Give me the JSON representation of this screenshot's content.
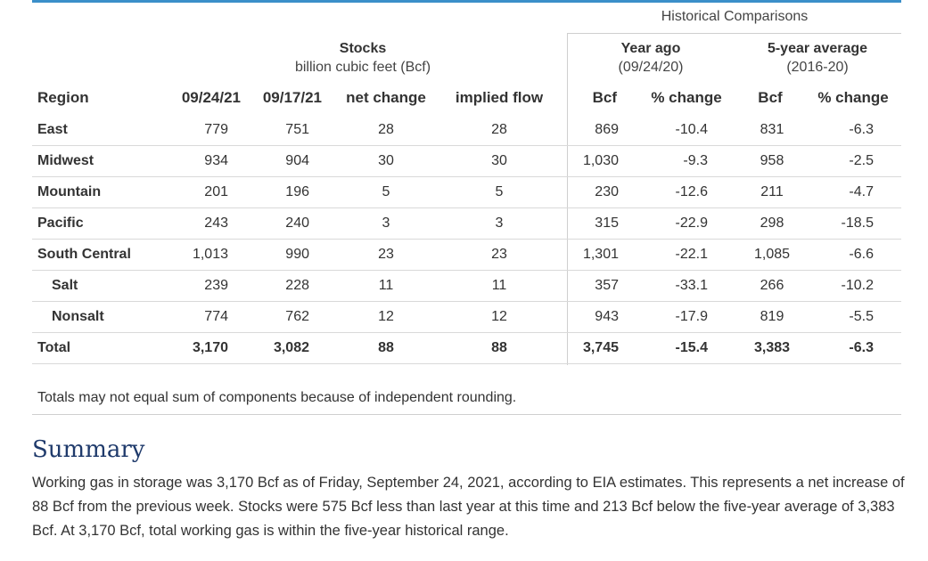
{
  "historical_comparisons": "Historical Comparisons",
  "stocks": {
    "title": "Stocks",
    "subtitle": "billion cubic feet (Bcf)"
  },
  "year_ago": {
    "title": "Year ago",
    "subtitle": "(09/24/20)"
  },
  "five_year": {
    "title": "5-year average",
    "subtitle": "(2016-20)"
  },
  "headers": [
    "Region",
    "09/24/21",
    "09/17/21",
    "net change",
    "implied flow",
    "Bcf",
    "% change",
    "Bcf",
    "% change"
  ],
  "rows": [
    {
      "region": "East",
      "cur": "779",
      "prev": "751",
      "net": "28",
      "flow": "28",
      "ya_bcf": "869",
      "ya_pct": "-10.4",
      "fy_bcf": "831",
      "fy_pct": "-6.3"
    },
    {
      "region": "Midwest",
      "cur": "934",
      "prev": "904",
      "net": "30",
      "flow": "30",
      "ya_bcf": "1,030",
      "ya_pct": "-9.3",
      "fy_bcf": "958",
      "fy_pct": "-2.5"
    },
    {
      "region": "Mountain",
      "cur": "201",
      "prev": "196",
      "net": "5",
      "flow": "5",
      "ya_bcf": "230",
      "ya_pct": "-12.6",
      "fy_bcf": "211",
      "fy_pct": "-4.7"
    },
    {
      "region": "Pacific",
      "cur": "243",
      "prev": "240",
      "net": "3",
      "flow": "3",
      "ya_bcf": "315",
      "ya_pct": "-22.9",
      "fy_bcf": "298",
      "fy_pct": "-18.5"
    },
    {
      "region": "South Central",
      "cur": "1,013",
      "prev": "990",
      "net": "23",
      "flow": "23",
      "ya_bcf": "1,301",
      "ya_pct": "-22.1",
      "fy_bcf": "1,085",
      "fy_pct": "-6.6"
    },
    {
      "region": "Salt",
      "cur": "239",
      "prev": "228",
      "net": "11",
      "flow": "11",
      "ya_bcf": "357",
      "ya_pct": "-33.1",
      "fy_bcf": "266",
      "fy_pct": "-10.2"
    },
    {
      "region": "Nonsalt",
      "cur": "774",
      "prev": "762",
      "net": "12",
      "flow": "12",
      "ya_bcf": "943",
      "ya_pct": "-17.9",
      "fy_bcf": "819",
      "fy_pct": "-5.5"
    },
    {
      "region": "Total",
      "cur": "3,170",
      "prev": "3,082",
      "net": "88",
      "flow": "88",
      "ya_bcf": "3,745",
      "ya_pct": "-15.4",
      "fy_bcf": "3,383",
      "fy_pct": "-6.3"
    }
  ],
  "note": "Totals may not equal sum of components because of independent rounding.",
  "summary": {
    "title": "Summary",
    "text": "Working gas in storage was 3,170 Bcf as of Friday, September 24, 2021, according to EIA estimates. This represents a net increase of 88 Bcf from the previous week. Stocks were 575 Bcf less than last year at this time and 213 Bcf below the five-year average of 3,383 Bcf. At 3,170 Bcf, total working gas is within the five-year historical range."
  },
  "colors": {
    "accent_bar": "#3b8fc9",
    "summary_title": "#1f3a6b"
  }
}
